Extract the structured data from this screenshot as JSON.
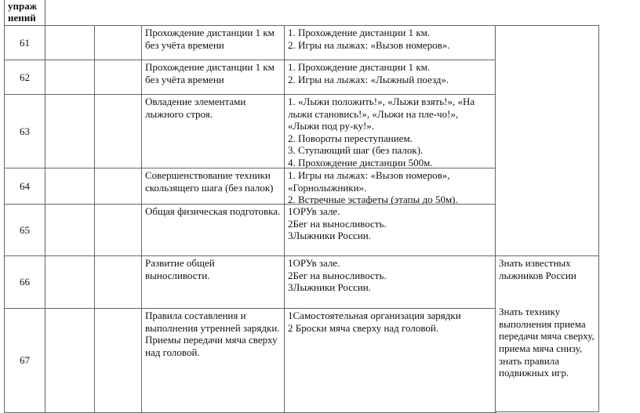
{
  "header": {
    "col1": "упраж\nнений"
  },
  "rows": [
    {
      "num": "61",
      "topic": "Прохождение дистанции 1 км без учёта времени",
      "content": "1. Прохождение  дистанции  1 км.\n2. Игры на лыжах: «Вызов номеров»."
    },
    {
      "num": "62",
      "topic": "Прохождение дистанции 1 км без учёта времени",
      "content": "1. Прохождение  дистанции  1 км.\n2. Игры на лыжах: «Лыжный поезд»."
    },
    {
      "num": "63",
      "topic": "Овладение элементами лыжного строя.",
      "content": "1. «Лыжи положить!»,  «Лыжи взять!»,  «На лыжи становись!»,  «Лыжи на пле-чо!»,\n«Лыжи под ру-ку!».\n2. Повороты переступанием.\n3. Ступающий шаг (без палок).\n4. Прохождение  дистанции  500м."
    },
    {
      "num": "64",
      "topic": "Совершенствование техники скользящего шага (без палок)",
      "content": "1. Игры на лыжах: «Вызов номеров»,\n«Горнолыжники».\n2. Встречные эстафеты (этапы до 50м)."
    },
    {
      "num": "65",
      "topic": "Общая физическая подготовка.",
      "content": "1ОРУв зале.\n2Бег на выносливость.\n3Лыжники России."
    },
    {
      "num": "66",
      "topic": "Развитие общей выносливости.",
      "content": "1ОРУв зале.\n2Бег на выносливость.\n3Лыжники России."
    },
    {
      "num": "67",
      "topic": "Правила составления и выполнения утренней зарядки. Приемы передачи мяча сверху над головой.",
      "content": "1Самостоятельная организация зарядки\n2 Броски мяча сверху над головой."
    }
  ],
  "requirements": {
    "r66": "Знать известных лыжников России",
    "r67": "Знать технику выполнения приема передачи мяча сверху, приема мяча снизу, знать правила подвижных игр."
  }
}
